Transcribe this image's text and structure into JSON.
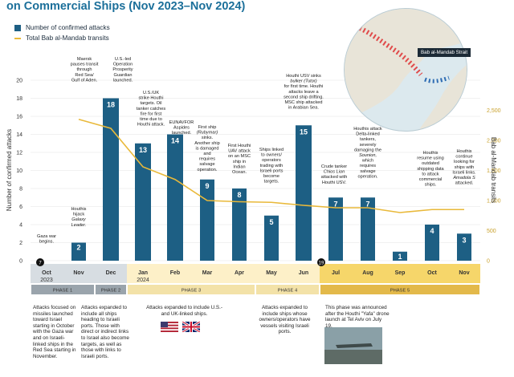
{
  "title": "on Commercial Ships (Nov 2023–Nov 2024)",
  "legend": {
    "bar_label": "Number of confirmed attacks",
    "line_label": "Total Bab al-Mandab transits"
  },
  "map_label": "Bab al-Mandab Strait",
  "chart_data": {
    "type": "bar",
    "categories": [
      "Oct",
      "Nov",
      "Dec",
      "Jan",
      "Feb",
      "Mar",
      "Apr",
      "May",
      "Jun",
      "Jul",
      "Aug",
      "Sep",
      "Oct",
      "Nov"
    ],
    "year_labels": [
      "2023",
      "2024"
    ],
    "series": [
      {
        "name": "Number of confirmed attacks",
        "values": [
          0,
          2,
          18,
          13,
          14,
          9,
          8,
          5,
          15,
          7,
          7,
          1,
          4,
          3
        ]
      },
      {
        "name": "Total Bab al-Mandab transits",
        "type": "line",
        "values": [
          null,
          2350,
          2200,
          1560,
          1350,
          1000,
          980,
          970,
          920,
          880,
          880,
          800,
          850,
          850
        ]
      }
    ],
    "ylabel": "Number of confirmed attacks",
    "y2label": "Bab al-Mandab transits",
    "ylim": [
      0,
      20
    ],
    "y2lim": [
      0,
      3000
    ],
    "yticks": [
      0,
      2,
      4,
      6,
      8,
      10,
      12,
      14,
      16,
      18,
      20
    ],
    "y2ticks": [
      "0",
      "500",
      "1,000",
      "1,500",
      "2,000",
      "2,500"
    ],
    "phases": [
      "PHASE 1",
      "PHASE 2",
      "PHASE 3",
      "PHASE 4",
      "PHASE 5"
    ],
    "milestone_markers": [
      "7",
      "19"
    ],
    "annotations": [
      [
        "Gaza war",
        "begins."
      ],
      [
        "Houthis",
        "hijack",
        "Galaxy",
        "Leader."
      ],
      [
        "Maersk",
        "pauses transit",
        "through",
        "Red Sea/",
        "Gulf of Aden."
      ],
      [
        "U.S.-led",
        "Operation",
        "Prosperity",
        "Guardian",
        "launched."
      ],
      [
        "U.S./UK",
        "strike Houthi",
        "targets. Oil",
        "tanker catches",
        "fire for first",
        "time due to",
        "Houthi attack."
      ],
      [
        "EUNAVFOR",
        "Aspides",
        "launched."
      ],
      [
        "First ship",
        "(Rubymar)",
        "sinks.",
        "Another ship",
        "is damaged",
        "and",
        "requires",
        "salvage",
        "operation."
      ],
      [
        "First Houthi",
        "UAV attack",
        "on an MSC",
        "ship in",
        "Indian",
        "Ocean."
      ],
      [
        "Ships linked",
        "to owners/",
        "operators",
        "trading with",
        "Israeli ports",
        "become",
        "targets."
      ],
      [
        "Houthi USV sinks",
        "bulker (Tutor)",
        "for first time. Houthi",
        "attacks leave a",
        "second ship drifting.",
        "MSC ship attacked",
        "in Arabian Sea."
      ],
      [
        "Crude tanker",
        "Chios Lion",
        "attacked with",
        "Houthi USV."
      ],
      [
        "Houthis attack",
        "Delta-linked",
        "tankers,",
        "severely",
        "damaging the",
        "Sounion,",
        "which",
        "requires",
        "salvage",
        "operation."
      ],
      [
        "Houthis",
        "resume using",
        "outdated",
        "shipping data",
        "to attack",
        "commercial",
        "ships."
      ],
      [
        "Houthis",
        "continue",
        "looking for",
        "ships with",
        "Israeli links.",
        "Amadola S",
        "attacked."
      ]
    ],
    "phase_notes": [
      "Attacks focused on missiles launched toward Israel starting in October with the Gaza war and on Israeli-linked ships in the Red Sea starting in November.",
      "Attacks expanded to include all ships heading to Israeli ports. Those with direct or indirect links to Israel also become targets, as well as those with links to Israeli ports.",
      "Attacks expanded to include U.S.- and UK-linked ships.",
      "Attacks expanded to include ships whose owners/operators have vessels visiting Israeli ports.",
      "This phase was announced after the Houthi \"Yafa\" drone launch at Tel Aviv on July 19."
    ],
    "colors": {
      "bar": "#1d5f84",
      "line": "#e9b93a",
      "phase_dark": "#d7dde2",
      "phase_light": "#fdf0c8",
      "phase_gold": "#f6d66a"
    }
  }
}
